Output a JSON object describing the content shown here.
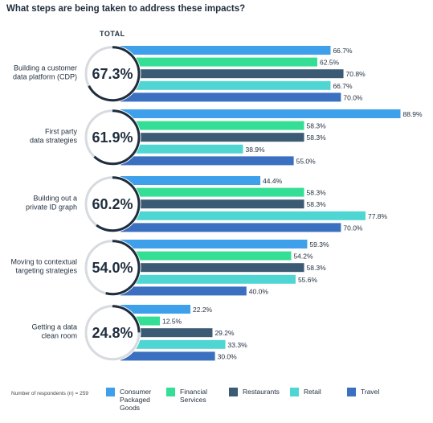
{
  "title": "What steps are being taken to address these impacts?",
  "total_header": "TOTAL",
  "respondents_note": "Number of respondents (n) = 259",
  "colors": {
    "cpg": "#3ea0ea",
    "financial": "#35de95",
    "restaurants": "#3b5a74",
    "retail": "#4fd6d2",
    "travel": "#3b6fc0",
    "ring_dark": "#1f2d3d",
    "ring_light": "#d7dadf"
  },
  "chart_data": {
    "type": "bar",
    "orientation": "horizontal",
    "categories": [
      "Building a customer data platform (CDP)",
      "First party data strategies",
      "Building out a private ID graph",
      "Moving to contextual targeting strategies",
      "Getting a data clean room"
    ],
    "category_lines": [
      [
        "Building a customer",
        "data platform (CDP)"
      ],
      [
        "First party",
        "data strategies"
      ],
      [
        "Building out a",
        "private ID graph"
      ],
      [
        "Moving to contextual",
        "targeting strategies"
      ],
      [
        "Getting a data",
        "clean room"
      ]
    ],
    "totals": [
      67.3,
      61.9,
      60.2,
      54.0,
      24.8
    ],
    "total_labels": [
      "67.3%",
      "61.9%",
      "60.2%",
      "54.0%",
      "24.8%"
    ],
    "series": [
      {
        "name": "Consumer Packaged Goods",
        "values": [
          66.7,
          88.9,
          44.4,
          59.3,
          22.2
        ],
        "labels": [
          "66.7%",
          "88.9%",
          "44.4%",
          "59.3%",
          "22.2%"
        ]
      },
      {
        "name": "Financial Services",
        "values": [
          62.5,
          58.3,
          58.3,
          54.2,
          12.5
        ],
        "labels": [
          "62.5%",
          "58.3%",
          "58.3%",
          "54.2%",
          "12.5%"
        ]
      },
      {
        "name": "Restaurants",
        "values": [
          70.8,
          58.3,
          58.3,
          58.3,
          29.2
        ],
        "labels": [
          "70.8%",
          "58.3%",
          "58.3%",
          "58.3%",
          "29.2%"
        ]
      },
      {
        "name": "Retail",
        "values": [
          66.7,
          38.9,
          77.8,
          55.6,
          33.3
        ],
        "labels": [
          "66.7%",
          "38.9%",
          "77.8%",
          "55.6%",
          "33.3%"
        ]
      },
      {
        "name": "Travel",
        "values": [
          70.0,
          55.0,
          70.0,
          40.0,
          30.0
        ],
        "labels": [
          "70.0%",
          "55.0%",
          "70.0%",
          "40.0%",
          "30.0%"
        ]
      }
    ],
    "legend_lines": [
      [
        "Consumer",
        "Packaged",
        "Goods"
      ],
      [
        "Financial",
        "Services"
      ],
      [
        "Restaurants"
      ],
      [
        "Retail"
      ],
      [
        "Travel"
      ]
    ],
    "legend_position": "bottom",
    "xlim": [
      0,
      100
    ]
  }
}
